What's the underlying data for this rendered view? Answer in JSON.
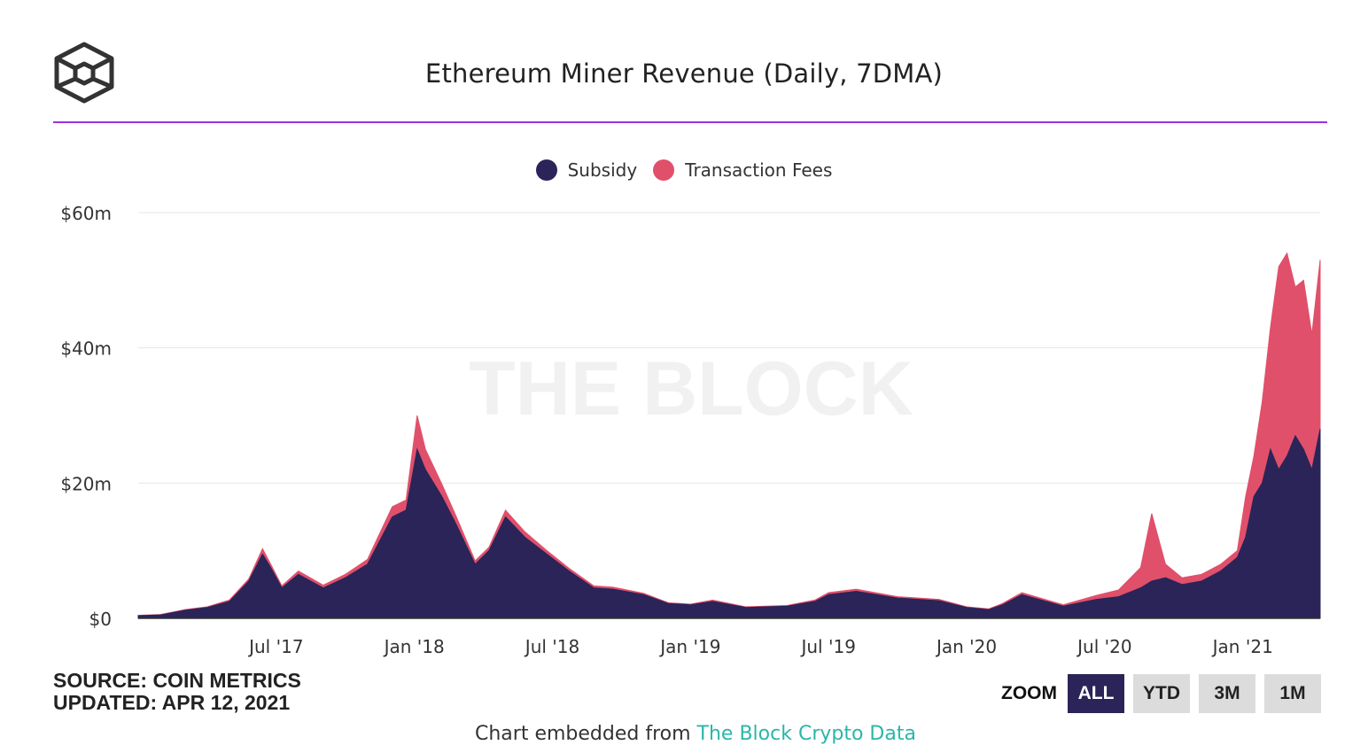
{
  "header": {
    "logo_icon": "cube-logo-icon",
    "title": "Ethereum Miner Revenue (Daily, 7DMA)",
    "rule_color": "#9b30e0"
  },
  "watermark": "THE BLOCK",
  "source": {
    "line1": "SOURCE: COIN METRICS",
    "line2": "UPDATED: APR 12, 2021"
  },
  "zoom": {
    "label": "ZOOM",
    "buttons": [
      "ALL",
      "YTD",
      "3M",
      "1M"
    ],
    "active": "ALL"
  },
  "footer": {
    "prefix": "Chart embedded from",
    "link": "The Block Crypto Data"
  },
  "colors": {
    "subsidy": "#2a2458",
    "fees": "#e0506b",
    "grid": "#e6e6e6"
  },
  "chart_data": {
    "type": "area",
    "stacked": true,
    "title": "Ethereum Miner Revenue (Daily, 7DMA)",
    "xlabel": "",
    "ylabel": "",
    "ylim": [
      0,
      60
    ],
    "y_unit": "$m",
    "y_ticks": [
      0,
      20,
      40,
      60
    ],
    "y_tick_labels": [
      "$0",
      "$20m",
      "$40m",
      "$60m"
    ],
    "x_domain": [
      2017.0,
      2021.28
    ],
    "x_ticks": [
      2017.5,
      2018.0,
      2018.5,
      2019.0,
      2019.5,
      2020.0,
      2020.5,
      2021.0
    ],
    "x_tick_labels": [
      "Jul '17",
      "Jan '18",
      "Jul '18",
      "Jan '19",
      "Jul '19",
      "Jan '20",
      "Jul '20",
      "Jan '21"
    ],
    "legend_position": "top-center",
    "grid": true,
    "x": [
      2017.0,
      2017.08,
      2017.17,
      2017.25,
      2017.33,
      2017.4,
      2017.45,
      2017.48,
      2017.52,
      2017.58,
      2017.67,
      2017.75,
      2017.83,
      2017.92,
      2017.97,
      2018.01,
      2018.04,
      2018.1,
      2018.15,
      2018.22,
      2018.27,
      2018.33,
      2018.4,
      2018.48,
      2018.56,
      2018.65,
      2018.72,
      2018.83,
      2018.92,
      2019.0,
      2019.08,
      2019.2,
      2019.35,
      2019.45,
      2019.5,
      2019.6,
      2019.75,
      2019.9,
      2020.0,
      2020.08,
      2020.13,
      2020.2,
      2020.35,
      2020.47,
      2020.55,
      2020.63,
      2020.67,
      2020.72,
      2020.78,
      2020.85,
      2020.92,
      2020.98,
      2021.01,
      2021.04,
      2021.07,
      2021.1,
      2021.13,
      2021.16,
      2021.19,
      2021.22,
      2021.25,
      2021.28
    ],
    "series": [
      {
        "name": "Subsidy",
        "values": [
          0.4,
          0.5,
          1.2,
          1.6,
          2.5,
          5.5,
          9.5,
          7.5,
          4.5,
          6.5,
          4.5,
          6.0,
          8.0,
          15.0,
          16.0,
          25.0,
          22.0,
          18.0,
          14.0,
          8.0,
          10.0,
          15.0,
          12.0,
          9.5,
          7.0,
          4.5,
          4.3,
          3.5,
          2.2,
          2.0,
          2.5,
          1.6,
          1.8,
          2.5,
          3.5,
          4.0,
          3.0,
          2.6,
          1.6,
          1.3,
          2.0,
          3.5,
          1.8,
          2.8,
          3.2,
          4.5,
          5.5,
          6.0,
          5.0,
          5.5,
          7.0,
          9.0,
          12.0,
          18.0,
          20.0,
          25.0,
          22.0,
          24.0,
          27.0,
          25.0,
          22.0,
          28.0
        ]
      },
      {
        "name": "Transaction Fees",
        "values": [
          0.05,
          0.05,
          0.1,
          0.1,
          0.2,
          0.3,
          0.8,
          0.5,
          0.3,
          0.5,
          0.4,
          0.5,
          0.7,
          1.5,
          1.5,
          5.0,
          3.0,
          1.8,
          1.2,
          0.5,
          0.5,
          1.0,
          0.8,
          0.5,
          0.4,
          0.3,
          0.3,
          0.2,
          0.1,
          0.1,
          0.2,
          0.1,
          0.1,
          0.2,
          0.3,
          0.3,
          0.2,
          0.2,
          0.1,
          0.1,
          0.2,
          0.3,
          0.2,
          0.6,
          1.0,
          3.0,
          10.0,
          2.0,
          1.0,
          1.0,
          1.0,
          1.0,
          6.0,
          6.0,
          12.0,
          18.0,
          30.0,
          30.0,
          22.0,
          25.0,
          20.0,
          25.0
        ]
      }
    ]
  }
}
